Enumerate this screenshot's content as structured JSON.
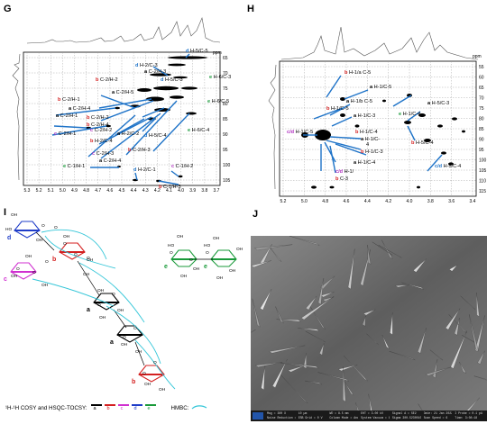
{
  "panels": {
    "G": {
      "letter": "G",
      "axis_unit": "ppm",
      "x_ticks": [
        "5.3",
        "5.2",
        "5.1",
        "5.0",
        "4.9",
        "4.8",
        "4.7",
        "4.6",
        "4.5",
        "4.4",
        "4.3",
        "4.2",
        "4.1",
        "4.0",
        "3.9",
        "3.8",
        "3.7"
      ],
      "y_ticks": [
        "65",
        "70",
        "75",
        "80",
        "85",
        "90",
        "95",
        "100",
        "105"
      ],
      "labels": [
        {
          "p": "d",
          "t": " H-5/C-5",
          "c": "#1e73c8"
        },
        {
          "p": "e",
          "t": " H-6/C-3",
          "c": "#1a9a3a"
        },
        {
          "p": "d",
          "t": " H-2/C-3",
          "c": "#1e73c8"
        },
        {
          "p": "a",
          "t": " C-2/H-3",
          "c": "#000000"
        },
        {
          "p": "b",
          "t": " C-2/H-2",
          "c": "#d42020"
        },
        {
          "p": "d",
          "t": " H-5/C-3",
          "c": "#1e73c8"
        },
        {
          "p": "b",
          "t": " C-2/H-1",
          "c": "#d42020"
        },
        {
          "p": "a",
          "t": " C-2/H-5",
          "c": "#000000"
        },
        {
          "p": "e",
          "t": " H-6/C-5",
          "c": "#1a9a3a"
        },
        {
          "p": "a",
          "t": " C-2/H-4",
          "c": "#000000"
        },
        {
          "p": "a",
          "t": " C-2/H-1",
          "c": "#000000"
        },
        {
          "p": "b",
          "t": " C-2/H-2",
          "c": "#d42020"
        },
        {
          "p": "b",
          "t": " C-2/H-4",
          "c": "#d42020"
        },
        {
          "p": "c",
          "t": " C-2/H-2",
          "c": "#b030c0"
        },
        {
          "p": "c",
          "t": " C-2/H-1",
          "c": "#b030c0"
        },
        {
          "p": "b",
          "t": " H-2/C-4",
          "c": "#d42020"
        },
        {
          "p": "a",
          "t": " H-2/C-2",
          "c": "#000000"
        },
        {
          "p": "d",
          "t": " H-5/C-4",
          "c": "#1e73c8"
        },
        {
          "p": "e",
          "t": " H-6/C-4",
          "c": "#1a9a3a"
        },
        {
          "p": "b",
          "t": " C-2/H-3",
          "c": "#d42020"
        },
        {
          "p": "c",
          "t": " C-2/H-3",
          "c": "#b030c0"
        },
        {
          "p": "a",
          "t": " C-2/H-4",
          "c": "#000000"
        },
        {
          "p": "e",
          "t": " C-1/H-1",
          "c": "#1a9a3a"
        },
        {
          "p": "d",
          "t": " H-2/C-1",
          "c": "#1e73c8"
        },
        {
          "p": "c",
          "t": " C-1/H-2",
          "c": "#b030c0"
        },
        {
          "p": "b",
          "t": " C-1/H-3",
          "c": "#d42020"
        }
      ]
    },
    "H": {
      "letter": "H",
      "axis_unit": "ppm",
      "x_ticks": [
        "5.2",
        "5.0",
        "4.8",
        "4.6",
        "4.4",
        "4.2",
        "4.0",
        "3.8",
        "3.6",
        "3.4"
      ],
      "y_ticks": [
        "55",
        "60",
        "65",
        "70",
        "75",
        "80",
        "85",
        "90",
        "95",
        "100",
        "105",
        "110",
        "115"
      ],
      "labels": [
        {
          "p": "b",
          "t": " H-1/a C-5",
          "c": "#d42020"
        },
        {
          "p": "a",
          "t": " H-1/C-5",
          "c": "#000000"
        },
        {
          "p": "a",
          "t": " H-1/b C-5",
          "c": "#000000"
        },
        {
          "p": "b",
          "t": " H-1/C-5",
          "c": "#d42020"
        },
        {
          "p": "a",
          "t": " H-5/C-3",
          "c": "#000000"
        },
        {
          "p": "a",
          "t": " H-1/C-3",
          "c": "#000000"
        },
        {
          "p": "e",
          "t": " H-1/C-4",
          "c": "#1a9a3a"
        },
        {
          "p": "c/d",
          "t": " H-1/C-5",
          "c": "#b030c0"
        },
        {
          "p": "b",
          "t": " H-1/C-4",
          "c": "#d42020"
        },
        {
          "p": "a",
          "t": " H-1/C-",
          "c": "#000000"
        },
        {
          "p": "",
          "t": "4",
          "c": "#000000"
        },
        {
          "p": "b",
          "t": " H-5/C-4",
          "c": "#d42020"
        },
        {
          "p": "b",
          "t": " H-1/C-3",
          "c": "#d42020"
        },
        {
          "p": "c/d",
          "t": " H-1/",
          "c": "#b030c0"
        },
        {
          "p": "b",
          "t": " C-3",
          "c": "#d42020"
        },
        {
          "p": "a",
          "t": " H-1/C-4",
          "c": "#000000"
        },
        {
          "p": "c/d",
          "t": " H-5/C-4",
          "c": "#1e73c8"
        }
      ]
    },
    "I": {
      "letter": "I",
      "residues": [
        {
          "letter": "d",
          "c": "#1e3cc8"
        },
        {
          "letter": "c",
          "c": "#d030d0"
        },
        {
          "letter": "b",
          "c": "#d42020"
        },
        {
          "letter": "a",
          "c": "#000000"
        },
        {
          "letter": "a",
          "c": "#000000"
        },
        {
          "letter": "b",
          "c": "#d42020"
        },
        {
          "letter": "e",
          "c": "#1a9a3a"
        },
        {
          "letter": "e",
          "c": "#1a9a3a"
        }
      ],
      "groups": [
        "OH",
        "OH",
        "OH",
        "OH",
        "OH",
        "OH",
        "OH",
        "OH",
        "OH",
        "OH",
        "OH",
        "OH",
        "OH",
        "OH",
        "OH",
        "OH",
        "OH",
        "OH",
        "OH",
        "OH",
        "OH",
        "OH",
        "HO",
        "HO",
        "HO",
        "O",
        "O",
        "O",
        "O",
        "O",
        "O",
        "O",
        "O",
        "O",
        "O",
        "O",
        "O",
        "O",
        "O",
        "O",
        "O",
        "O"
      ],
      "legend": {
        "prefix": "¹H-¹H COSY and HSQC-TOCSY:",
        "entries": [
          {
            "label": "a",
            "c": "#000000"
          },
          {
            "label": "b",
            "c": "#d42020"
          },
          {
            "label": "c",
            "c": "#d030d0"
          },
          {
            "label": "d",
            "c": "#1e3cc8"
          },
          {
            "label": "e",
            "c": "#1a9a3a"
          }
        ],
        "hmbc_label": "HMBC:",
        "hmbc_color": "#35c6d8"
      }
    },
    "J": {
      "letter": "J",
      "info_bar": [
        "Mag = 300 X",
        "10 µm",
        "WD = 8.5 mm",
        "EHT = 3.00 kV",
        "Signal A = SE2",
        "Date: 21 Jan 2022",
        "I Probe = 0.1 pA",
        "Noise Reduction = Line Int. Busy",
        "ESB Grid = 0 V",
        "Column Mode = Analytic",
        "System Vacuum = 1.07e-05 mbar",
        "Sigma 300-5230010250",
        "Scan Speed = 6",
        "Time: 3:08:18"
      ]
    }
  }
}
